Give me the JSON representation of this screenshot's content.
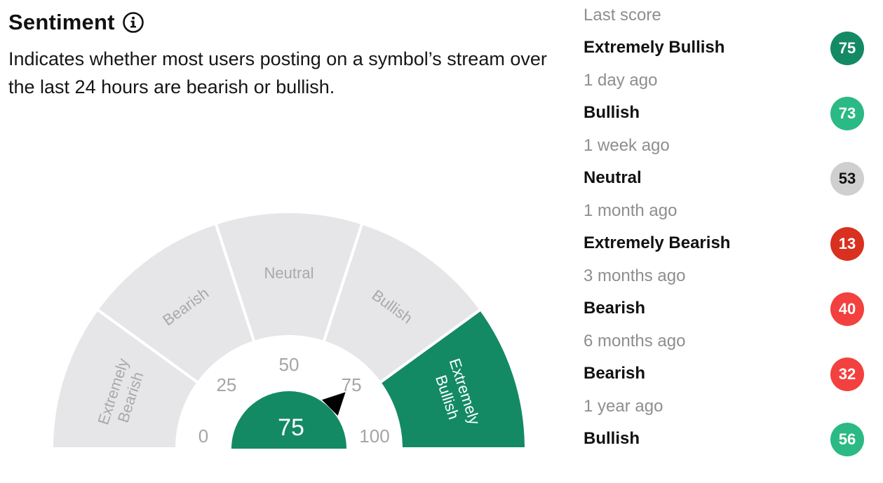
{
  "header": {
    "title": "Sentiment",
    "description": "Indicates whether most users posting on a symbol’s stream over the last 24 hours are bearish or bullish."
  },
  "gauge": {
    "score": 75,
    "segments": [
      {
        "label_lines": [
          "Extremely",
          "Bearish"
        ],
        "active": false
      },
      {
        "label_lines": [
          "Bearish"
        ],
        "active": false
      },
      {
        "label_lines": [
          "Neutral"
        ],
        "active": false
      },
      {
        "label_lines": [
          "Bullish"
        ],
        "active": false
      },
      {
        "label_lines": [
          "Extremely",
          "Bullish"
        ],
        "active": true
      }
    ],
    "ticks": [
      "0",
      "25",
      "50",
      "75",
      "100"
    ],
    "colors": {
      "inactive": "#e6e6e8",
      "active": "#138a63",
      "inactive_text": "#a9a9ad",
      "active_text": "#ffffff",
      "tick_text": "#a5a5a5"
    }
  },
  "history": [
    {
      "time": "Last score",
      "label": "Extremely Bullish",
      "score": "75",
      "color": "#138a63",
      "neutral": false
    },
    {
      "time": "1 day ago",
      "label": "Bullish",
      "score": "73",
      "color": "#2bb985",
      "neutral": false
    },
    {
      "time": "1 week ago",
      "label": "Neutral",
      "score": "53",
      "color": "#cfcfcf",
      "neutral": true
    },
    {
      "time": "1 month ago",
      "label": "Extremely Bearish",
      "score": "13",
      "color": "#d9301f",
      "neutral": false
    },
    {
      "time": "3 months ago",
      "label": "Bearish",
      "score": "40",
      "color": "#f2413e",
      "neutral": false
    },
    {
      "time": "6 months ago",
      "label": "Bearish",
      "score": "32",
      "color": "#f2413e",
      "neutral": false
    },
    {
      "time": "1 year ago",
      "label": "Bullish",
      "score": "56",
      "color": "#2bb985",
      "neutral": false
    }
  ]
}
